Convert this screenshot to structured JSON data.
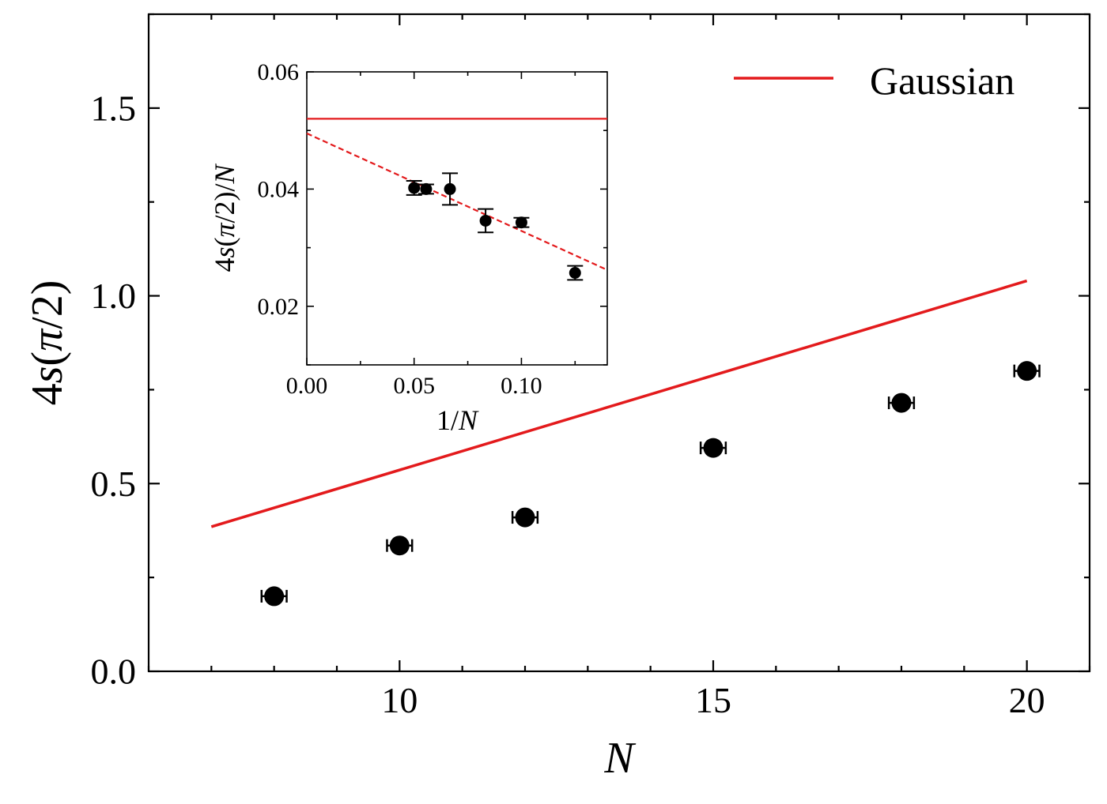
{
  "chart_data": [
    {
      "type": "scatter",
      "xlabel": "N",
      "ylabel": "4s(π/2)",
      "ylabel_parts": {
        "pre": "4",
        "var": "s",
        "open": "(",
        "greek": "π",
        "rest": "/2)"
      },
      "xlim": [
        6,
        21
      ],
      "ylim": [
        0,
        1.75
      ],
      "xticks": [
        10,
        15,
        20
      ],
      "xtick_labels": [
        "10",
        "15",
        "20"
      ],
      "yticks": [
        0.0,
        0.5,
        1.0,
        1.5
      ],
      "ytick_labels": [
        "0.0",
        "0.5",
        "1.0",
        "1.5"
      ],
      "legend": {
        "placement": "top-right",
        "entries": [
          {
            "label": "Gaussian",
            "color": "#e31a1c",
            "style": "solid"
          }
        ]
      },
      "series": [
        {
          "name": "Gaussian",
          "kind": "line",
          "color": "#e31a1c",
          "x": [
            7.0,
            20.0
          ],
          "y": [
            0.385,
            1.04
          ]
        },
        {
          "kind": "points-with-xerr",
          "color": "#000000",
          "x": [
            8,
            10,
            12,
            15,
            18,
            20
          ],
          "y": [
            0.2,
            0.335,
            0.41,
            0.595,
            0.715,
            0.8
          ],
          "xerr": [
            0.2,
            0.2,
            0.2,
            0.2,
            0.2,
            0.2
          ]
        }
      ]
    },
    {
      "type": "scatter",
      "inset": true,
      "xlabel": "1/N",
      "xlabel_parts": {
        "pre": "1/",
        "var": "N"
      },
      "ylabel": "4s(π/2)/N",
      "ylabel_parts": {
        "pre": "4",
        "var": "s",
        "open": "(",
        "greek": "π",
        "rest": "/2)/",
        "var2": "N"
      },
      "xlim": [
        0,
        0.14
      ],
      "ylim": [
        0.01,
        0.06
      ],
      "xticks": [
        0.0,
        0.05,
        0.1
      ],
      "xtick_labels": [
        "0.00",
        "0.05",
        "0.10"
      ],
      "yticks": [
        0.02,
        0.04,
        0.06
      ],
      "ytick_labels": [
        "0.02",
        "0.04",
        "0.06"
      ],
      "series": [
        {
          "name": "Gaussian",
          "kind": "hline",
          "color": "#e31a1c",
          "y": 0.052
        },
        {
          "kind": "fit-dashed",
          "color": "#e31a1c",
          "x": [
            0.0,
            0.14
          ],
          "y": [
            0.0495,
            0.0262
          ]
        },
        {
          "kind": "points-with-yerr",
          "color": "#000000",
          "x": [
            0.05,
            0.0556,
            0.0667,
            0.0833,
            0.1,
            0.125
          ],
          "y": [
            0.0402,
            0.04,
            0.04,
            0.0346,
            0.0343,
            0.0257
          ],
          "yerr": [
            0.0012,
            0.0008,
            0.0027,
            0.002,
            0.0008,
            0.0012
          ]
        }
      ]
    }
  ]
}
